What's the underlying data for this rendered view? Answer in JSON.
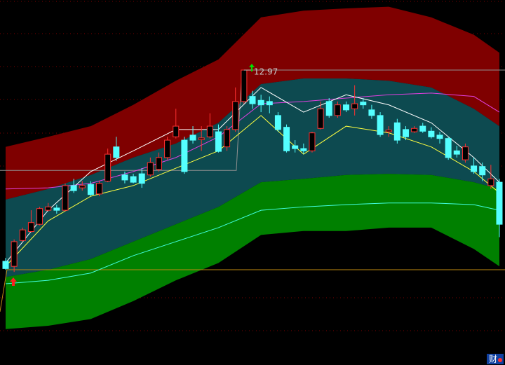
{
  "chart_data": {
    "type": "candlestick",
    "xlim": [
      -0.66,
      58.66
    ],
    "ylim": [
      7.71,
      14.22
    ],
    "up_color": "#ff3232",
    "down_color": "#54ffff",
    "candles": {
      "open": [
        9.56,
        9.47,
        9.93,
        10.09,
        10.22,
        10.47,
        10.51,
        10.47,
        10.91,
        10.87,
        10.93,
        10.76,
        10.99,
        11.6,
        11.1,
        11.07,
        11.12,
        11.1,
        11.2,
        11.41,
        11.78,
        11.72,
        11.81,
        11.73,
        11.78,
        11.87,
        11.6,
        11.91,
        12.41,
        12.5,
        12.43,
        12.41,
        12.16,
        11.95,
        11.62,
        11.57,
        11.53,
        11.93,
        12.41,
        12.16,
        12.35,
        12.28,
        12.4,
        12.26,
        12.16,
        11.87,
        12.03,
        11.91,
        11.87,
        11.97,
        11.88,
        11.81,
        11.75,
        11.53,
        11.37,
        11.26,
        11.25,
        10.91,
        10.97
      ],
      "high": [
        9.62,
        9.95,
        10.16,
        10.47,
        10.53,
        10.6,
        10.57,
        10.95,
        11.03,
        10.99,
        10.99,
        10.99,
        11.57,
        11.78,
        11.16,
        11.12,
        11.22,
        11.41,
        11.5,
        11.78,
        12.28,
        11.78,
        11.97,
        11.97,
        12.2,
        12.0,
        11.97,
        12.66,
        12.97,
        12.6,
        12.53,
        12.5,
        12.22,
        12.0,
        11.72,
        11.66,
        11.87,
        12.41,
        12.47,
        12.41,
        12.41,
        12.7,
        12.47,
        12.35,
        12.22,
        11.97,
        12.1,
        11.97,
        11.97,
        12.03,
        11.95,
        11.87,
        11.78,
        11.62,
        11.66,
        11.41,
        11.32,
        11.28,
        11.03
      ],
      "low": [
        9.41,
        9.37,
        9.91,
        10.07,
        10.2,
        10.45,
        10.41,
        10.45,
        10.78,
        10.82,
        10.72,
        10.72,
        10.97,
        11.35,
        10.95,
        10.95,
        10.87,
        11.07,
        11.16,
        11.37,
        11.75,
        11.12,
        11.66,
        11.53,
        11.75,
        11.5,
        11.53,
        11.87,
        12.37,
        12.28,
        12.22,
        12.2,
        11.87,
        11.5,
        11.5,
        11.47,
        11.5,
        11.91,
        12.12,
        12.12,
        12.22,
        12.16,
        12.28,
        12.1,
        11.78,
        11.78,
        11.66,
        11.72,
        11.85,
        11.85,
        11.75,
        11.66,
        11.37,
        11.41,
        11.32,
        11.12,
        10.99,
        10.85,
        9.99
      ],
      "close": [
        9.43,
        9.91,
        10.12,
        10.25,
        10.5,
        10.53,
        10.47,
        10.91,
        10.82,
        10.91,
        10.75,
        10.95,
        11.47,
        11.41,
        11.01,
        10.97,
        10.95,
        11.32,
        11.41,
        11.72,
        11.97,
        11.16,
        11.72,
        11.76,
        11.97,
        11.52,
        11.91,
        12.41,
        12.97,
        12.37,
        12.35,
        12.35,
        11.91,
        11.53,
        11.57,
        11.53,
        11.85,
        12.28,
        12.16,
        12.35,
        12.26,
        12.37,
        12.35,
        12.16,
        11.82,
        11.9,
        11.72,
        11.78,
        11.93,
        11.88,
        11.78,
        11.75,
        11.41,
        11.47,
        11.6,
        11.16,
        11.1,
        11.03,
        10.22
      ]
    },
    "overlay_x": [
      0,
      5,
      10,
      15,
      20,
      25,
      30,
      35,
      40,
      45,
      50,
      55,
      58
    ],
    "bands": [
      {
        "color": "#7f0000",
        "upper": [
          11.6,
          11.78,
          11.97,
          12.35,
          12.78,
          13.16,
          13.91,
          14.03,
          14.07,
          14.1,
          13.91,
          13.6,
          13.28
        ],
        "lower": [
          10.66,
          10.85,
          11.1,
          11.41,
          11.66,
          12.03,
          12.72,
          12.82,
          12.82,
          12.78,
          12.66,
          12.28,
          11.97
        ]
      },
      {
        "color": "#0d4a50",
        "upper": [
          10.66,
          10.85,
          11.1,
          11.41,
          11.66,
          12.03,
          12.72,
          12.82,
          12.82,
          12.78,
          12.66,
          12.28,
          11.97
        ],
        "lower": [
          9.28,
          9.41,
          9.6,
          9.91,
          10.22,
          10.53,
          10.97,
          11.03,
          11.1,
          11.12,
          11.1,
          10.97,
          10.85
        ]
      },
      {
        "color": "#008000",
        "upper": [
          9.28,
          9.41,
          9.6,
          9.91,
          10.22,
          10.53,
          10.97,
          11.03,
          11.1,
          11.12,
          11.1,
          10.97,
          10.85
        ],
        "lower": [
          8.35,
          8.41,
          8.53,
          8.85,
          9.22,
          9.53,
          10.03,
          10.1,
          10.1,
          10.16,
          10.16,
          9.78,
          9.47
        ]
      }
    ],
    "lines": [
      {
        "color": "#e040e0",
        "values": [
          10.85,
          10.87,
          10.95,
          11.16,
          11.41,
          11.78,
          12.37,
          12.41,
          12.47,
          12.53,
          12.56,
          12.5,
          12.22
        ]
      },
      {
        "color": "#ffffff",
        "values": [
          9.53,
          10.47,
          11.16,
          11.53,
          11.91,
          11.91,
          12.66,
          12.22,
          12.53,
          12.35,
          12.03,
          11.41,
          10.97
        ]
      },
      {
        "color": "#ffff40",
        "values": [
          9.47,
          10.28,
          10.72,
          10.91,
          11.22,
          11.53,
          12.16,
          11.47,
          11.97,
          11.85,
          11.6,
          11.16,
          10.78
        ]
      },
      {
        "color": "#40ffe0",
        "values": [
          9.16,
          9.22,
          9.35,
          9.66,
          9.91,
          10.16,
          10.47,
          10.53,
          10.57,
          10.6,
          10.6,
          10.57,
          10.47
        ]
      }
    ],
    "ref_lines": [
      {
        "color": "#909090",
        "x": [
          -0.66,
          27.1,
          27.76,
          58.66
        ],
        "values": [
          11.18,
          11.18,
          12.97,
          12.97
        ]
      },
      {
        "color": "#c08a10",
        "x": [
          -0.66,
          0.16,
          58.66
        ],
        "values": [
          8.66,
          9.41,
          9.41
        ]
      }
    ]
  },
  "corner_icon": "财"
}
